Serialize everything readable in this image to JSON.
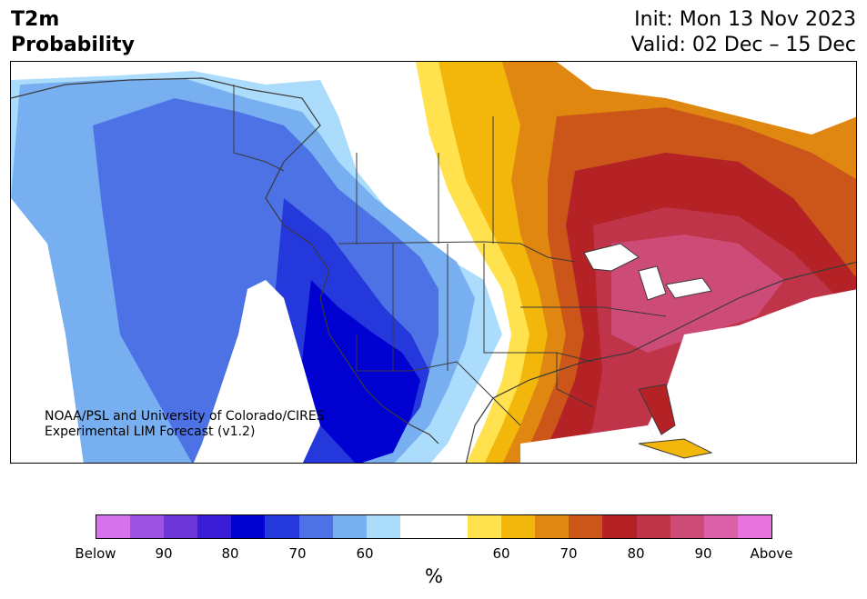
{
  "header": {
    "title_line1": "T2m",
    "title_line2": "Probability",
    "init_text": "Init: Mon 13 Nov 2023",
    "valid_text": "Valid: 02 Dec – 15 Dec"
  },
  "credit": {
    "line1": "NOAA/PSL and University of Colorado/CIRES",
    "line2": "Experimental LIM Forecast (v1.2)"
  },
  "colorbar": {
    "colors": [
      "#d473ea",
      "#9d52e2",
      "#6d37d8",
      "#3a1bd6",
      "#0000d0",
      "#2438dc",
      "#4d72e6",
      "#78aff0",
      "#acdcfb",
      "#ffffff",
      "#ffffff",
      "#ffe24d",
      "#f3b60b",
      "#df8711",
      "#cc5619",
      "#b52226",
      "#c0344a",
      "#cd4b77",
      "#da60a7",
      "#e873dd"
    ],
    "tick_labels": [
      "Below",
      "90",
      "80",
      "70",
      "60",
      "60",
      "70",
      "80",
      "90",
      "Above"
    ],
    "units": "%"
  },
  "map": {
    "regions": [
      "below-normal-west",
      "near-normal-plains",
      "above-normal-east"
    ]
  }
}
